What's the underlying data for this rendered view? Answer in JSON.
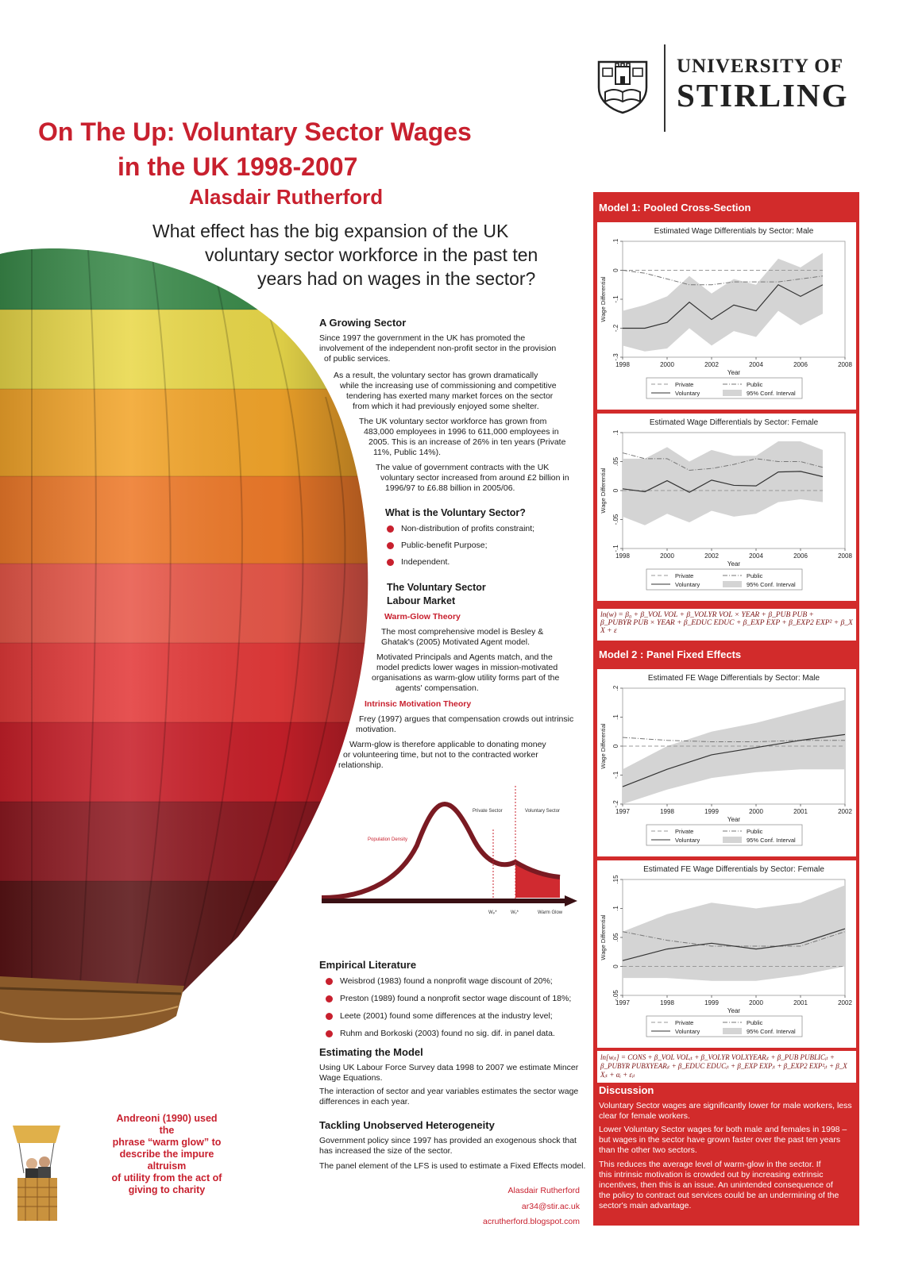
{
  "university": {
    "line1": "UNIVERSITY OF",
    "line2": "STIRLING"
  },
  "title": {
    "line1": "On The Up: Voluntary Sector Wages",
    "line2": "in the UK 1998-2007",
    "author": "Alasdair Rutherford"
  },
  "question": {
    "line1": "What effect has the big expansion of the UK",
    "line2": "voluntary sector workforce in the past ten",
    "line3": "years had on wages in the sector?"
  },
  "growing": {
    "heading": "A Growing Sector",
    "p1": [
      "Since 1997 the government in the UK has promoted the",
      "involvement of the independent non-profit sector in the provision",
      "of public services."
    ],
    "p2": [
      "As a result, the voluntary sector has grown dramatically",
      "while the increasing use of commissioning and competitive",
      "tendering has exerted many market forces on the sector",
      "from which it had previously enjoyed some shelter."
    ],
    "p3": [
      "The UK voluntary sector workforce has grown from",
      "483,000 employees in 1996 to 611,000 employees in",
      "2005. This is an increase of 26% in ten years (Private",
      "11%, Public 14%)."
    ],
    "p4": [
      "The value of government contracts with the UK",
      "voluntary sector increased from around £2 billion in",
      "1996/97 to £6.88 billion in 2005/06."
    ]
  },
  "what_is": {
    "heading": "What is the Voluntary Sector?",
    "bullets": [
      "Non-distribution of profits constraint;",
      "Public-benefit Purpose;",
      "Independent."
    ]
  },
  "labour": {
    "heading1": "The Voluntary Sector",
    "heading2": "Labour Market",
    "warm_heading": "Warm-Glow Theory",
    "warm_p1": [
      "The most comprehensive model is Besley &",
      "Ghatak's (2005) Motivated Agent model."
    ],
    "warm_p2": [
      "Motivated Principals and Agents match, and the",
      "model predicts lower wages in mission-motivated",
      "organisations as warm-glow utility forms part of the",
      "agents' compensation."
    ],
    "intrinsic_heading": "Intrinsic Motivation Theory",
    "intrinsic_p1": [
      "Frey (1997) argues that compensation crowds out intrinsic",
      "motivation."
    ],
    "intrinsic_p2": [
      "Warm-glow is therefore applicable to donating money",
      "or volunteering time, but not to the contracted worker",
      "relationship."
    ]
  },
  "diagram": {
    "private_label": "Private Sector",
    "voluntary_label": "Voluntary Sector",
    "density_label": "Population Density",
    "wp_label": "Wₚ*",
    "wv_label": "Wᵥ*",
    "axis_label": "Warm Glow"
  },
  "empirical": {
    "heading": "Empirical Literature",
    "bullets": [
      "Weisbrod (1983) found a nonprofit wage discount of 20%;",
      "Preston (1989) found a nonprofit sector wage discount of 18%;",
      "Leete (2001) found some differences at the industry level;",
      "Ruhm and Borkoski (2003) found no sig. dif. in panel data."
    ]
  },
  "estimating": {
    "heading": "Estimating the Model",
    "p1": [
      "Using UK Labour Force Survey data 1998 to 2007 we estimate Mincer",
      "Wage Equations."
    ],
    "p2": [
      "The interaction of sector and year variables estimates the sector wage",
      "differences in each year."
    ]
  },
  "tackling": {
    "heading": "Tackling Unobserved Heterogeneity",
    "p1": [
      "Government policy since 1997 has provided an exogenous shock that",
      "has increased the size of the sector."
    ],
    "p2": [
      "The panel element of the LFS is used to estimate a Fixed Effects model."
    ]
  },
  "contact": {
    "name": "Alasdair Rutherford",
    "email": "ar34@stir.ac.uk",
    "blog": "acrutherford.blogspot.com"
  },
  "quote": [
    "Andreoni (1990) used the",
    "phrase “warm glow” to",
    "describe the impure altruism",
    "of utility from the act of",
    "giving to charity"
  ],
  "model1": {
    "heading": "Model 1: Pooled Cross-Section",
    "equation_line1": "ln(w) = β₀ + β_VOL VOL + β_VOLYR VOL × YEAR + β_PUB PUB +",
    "equation_line2": "β_PUBYR PUB × YEAR + β_EDUC EDUC + β_EXP EXP + β_EXP2 EXP² + β_X X + ε"
  },
  "model2": {
    "heading": "Model 2 : Panel Fixed Effects",
    "equation_line1": "ln[wᵢₜ] = CONS + β_VOL VOLᵢₜ + β_VOLYR VOLXYEARᵢₜ + β_PUB PUBLICᵢₜ +",
    "equation_line2": "β_PUBYR PUBXYEARᵢₜ + β_EDUC EDUCᵢₜ + β_EXP EXPᵢₜ + β_EXP2 EXP²ᵢₜ + β_X Xᵢₜ + αᵢ + εᵢₜ"
  },
  "discussion": {
    "heading": "Discussion",
    "p1": [
      "Voluntary Sector wages are significantly lower for male workers, less",
      "clear for female workers."
    ],
    "p2": [
      "Lower Voluntary Sector wages for both male and females in 1998 –",
      "but wages in the sector have grown faster over the past ten years",
      "than the other two sectors."
    ],
    "p3": [
      "This reduces the average level of warm-glow in the sector.  If",
      "this intrinsic motivation is crowded out by increasing extrinsic",
      "incentives, then this is an issue.  An unintended consequence of",
      "the policy to contract out services could be an undermining of the",
      "sector's main advantage."
    ]
  },
  "chart_data": [
    {
      "type": "line",
      "title": "Estimated Wage Differentials by Sector: Male",
      "xlabel": "Year",
      "ylabel": "Wage Differential",
      "xlim": [
        1998,
        2008
      ],
      "ylim": [
        -0.3,
        0.1
      ],
      "xticks": [
        1998,
        2000,
        2002,
        2004,
        2006,
        2008
      ],
      "yticks": [
        -0.3,
        -0.2,
        -0.1,
        0,
        0.1
      ],
      "ytick_labels": [
        "-.3",
        "-.2",
        "-.1",
        "0",
        ".1"
      ],
      "x": [
        1998,
        1999,
        2000,
        2001,
        2002,
        2003,
        2004,
        2005,
        2006,
        2007
      ],
      "series": [
        {
          "name": "Private",
          "values": [
            0,
            0,
            0,
            0,
            0,
            0,
            0,
            0,
            0,
            0
          ]
        },
        {
          "name": "Voluntary",
          "values": [
            -0.2,
            -0.2,
            -0.18,
            -0.11,
            -0.17,
            -0.12,
            -0.14,
            -0.05,
            -0.09,
            -0.05
          ]
        },
        {
          "name": "Public",
          "values": [
            0,
            -0.01,
            -0.03,
            -0.05,
            -0.05,
            -0.04,
            -0.04,
            -0.04,
            -0.03,
            -0.02
          ]
        },
        {
          "name": "95% Conf. Interval",
          "lower": [
            -0.26,
            -0.28,
            -0.27,
            -0.2,
            -0.26,
            -0.21,
            -0.23,
            -0.14,
            -0.19,
            -0.15
          ],
          "upper": [
            -0.14,
            -0.12,
            -0.09,
            -0.02,
            -0.08,
            -0.03,
            -0.05,
            0.04,
            0.01,
            0.06
          ]
        }
      ],
      "legend": "bottom"
    },
    {
      "type": "line",
      "title": "Estimated Wage Differentials by Sector: Female",
      "xlabel": "Year",
      "ylabel": "Wage Differential",
      "xlim": [
        1998,
        2008
      ],
      "ylim": [
        -0.1,
        0.1
      ],
      "xticks": [
        1998,
        2000,
        2002,
        2004,
        2006,
        2008
      ],
      "yticks": [
        -0.1,
        -0.05,
        0,
        0.05,
        0.1
      ],
      "ytick_labels": [
        "-.1",
        "-.05",
        "0",
        ".05",
        ".1"
      ],
      "x": [
        1998,
        1999,
        2000,
        2001,
        2002,
        2003,
        2004,
        2005,
        2006,
        2007
      ],
      "series": [
        {
          "name": "Private",
          "values": [
            0,
            0,
            0,
            0,
            0,
            0,
            0,
            0,
            0,
            0
          ]
        },
        {
          "name": "Voluntary",
          "values": [
            0.003,
            -0.002,
            0.017,
            -0.003,
            0.018,
            0.009,
            0.008,
            0.032,
            0.033,
            0.024
          ]
        },
        {
          "name": "Public",
          "values": [
            0.065,
            0.055,
            0.055,
            0.035,
            0.038,
            0.045,
            0.055,
            0.05,
            0.05,
            0.04
          ]
        },
        {
          "name": "95% Conf. Interval",
          "lower": [
            -0.045,
            -0.06,
            -0.04,
            -0.055,
            -0.035,
            -0.045,
            -0.04,
            -0.02,
            -0.015,
            -0.02
          ],
          "upper": [
            0.055,
            0.055,
            0.075,
            0.05,
            0.07,
            0.06,
            0.06,
            0.085,
            0.085,
            0.07
          ]
        }
      ],
      "legend": "bottom"
    },
    {
      "type": "line",
      "title": "Estimated FE Wage Differentials by Sector: Male",
      "xlabel": "Year",
      "ylabel": "Wage Differential",
      "xlim": [
        1997,
        2002
      ],
      "ylim": [
        -0.2,
        0.2
      ],
      "xticks": [
        1997,
        1998,
        1999,
        2000,
        2001,
        2002
      ],
      "yticks": [
        -0.2,
        -0.1,
        0,
        0.1,
        0.2
      ],
      "ytick_labels": [
        "-.2",
        "-.1",
        "0",
        ".1",
        ".2"
      ],
      "x": [
        1997,
        1998,
        1999,
        2000,
        2001,
        2002
      ],
      "series": [
        {
          "name": "Private",
          "values": [
            0,
            0,
            0,
            0,
            0,
            0
          ]
        },
        {
          "name": "Voluntary",
          "values": [
            -0.14,
            -0.08,
            -0.03,
            -0.005,
            0.02,
            0.04
          ]
        },
        {
          "name": "Public",
          "values": [
            0.03,
            0.02,
            0.015,
            0.015,
            0.02,
            0.02
          ]
        },
        {
          "name": "95% Conf. Interval",
          "lower": [
            -0.2,
            -0.15,
            -0.11,
            -0.09,
            -0.08,
            -0.08
          ],
          "upper": [
            -0.08,
            0.0,
            0.05,
            0.08,
            0.12,
            0.16
          ]
        }
      ],
      "legend": "bottom"
    },
    {
      "type": "line",
      "title": "Estimated FE Wage Differentials by Sector: Female",
      "xlabel": "Year",
      "ylabel": "Wage Differential",
      "xlim": [
        1997,
        2002
      ],
      "ylim": [
        -0.05,
        0.15
      ],
      "xticks": [
        1997,
        1998,
        1999,
        2000,
        2001,
        2002
      ],
      "yticks": [
        -0.05,
        0,
        0.05,
        0.1,
        0.15
      ],
      "ytick_labels": [
        "-.05",
        "0",
        ".05",
        ".1",
        ".15"
      ],
      "x": [
        1997,
        1998,
        1999,
        2000,
        2001,
        2002
      ],
      "series": [
        {
          "name": "Private",
          "values": [
            0,
            0,
            0,
            0,
            0,
            0
          ]
        },
        {
          "name": "Voluntary",
          "values": [
            0.01,
            0.03,
            0.04,
            0.03,
            0.04,
            0.065
          ]
        },
        {
          "name": "Public",
          "values": [
            0.06,
            0.045,
            0.035,
            0.035,
            0.035,
            0.06
          ]
        },
        {
          "name": "95% Conf. Interval",
          "lower": [
            -0.02,
            -0.02,
            -0.025,
            -0.025,
            -0.015,
            0.0
          ],
          "upper": [
            0.06,
            0.09,
            0.11,
            0.1,
            0.11,
            0.14
          ]
        }
      ],
      "legend": "bottom"
    }
  ]
}
